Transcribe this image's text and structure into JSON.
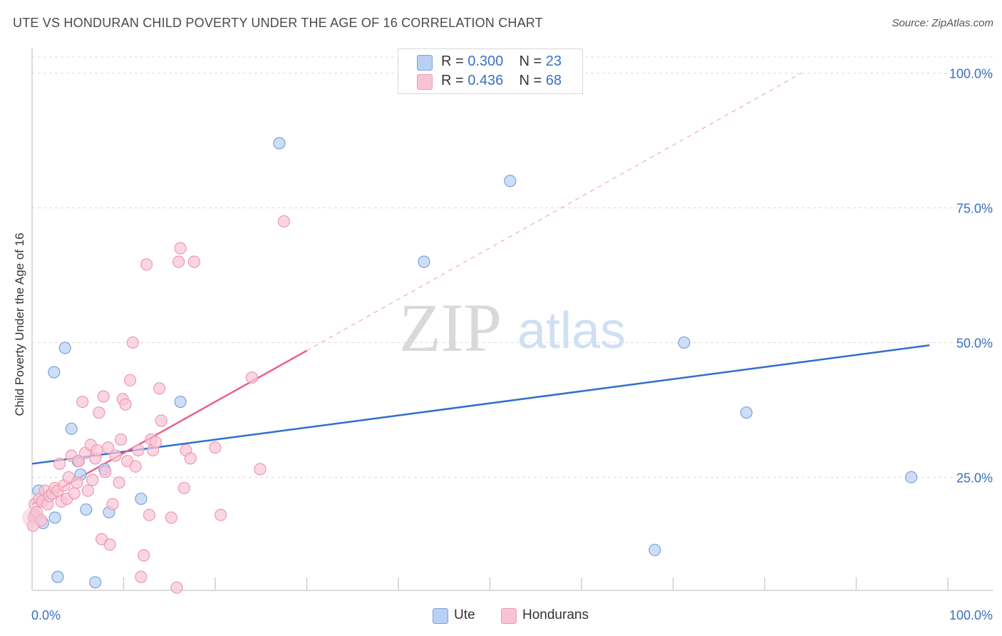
{
  "header": {
    "title": "UTE VS HONDURAN CHILD POVERTY UNDER THE AGE OF 16 CORRELATION CHART",
    "source": "Source: ZipAtlas.com"
  },
  "watermark": {
    "zip": "ZIP",
    "atlas": "atlas"
  },
  "legend": {
    "ute": {
      "r_label": "R =",
      "r_value": "0.300",
      "n_label": "N =",
      "n_value": "23"
    },
    "hondurans": {
      "r_label": "R =",
      "r_value": "0.436",
      "n_label": "N =",
      "n_value": "68"
    }
  },
  "bottom_legend": {
    "ute": "Ute",
    "hondurans": "Hondurans"
  },
  "colors": {
    "ute_fill": "#b8d0f2",
    "ute_stroke": "#7aa3dc",
    "ute_line": "#2f6fce",
    "hond_fill": "#f8c4d4",
    "hond_stroke": "#ee98b2",
    "hond_line": "#e8628c",
    "axis_text": "#3a6fc4",
    "grid": "#dcdcdc"
  },
  "chart_data": {
    "type": "scatter",
    "title": "UTE VS HONDURAN CHILD POVERTY UNDER THE AGE OF 16 CORRELATION CHART",
    "xlabel": "",
    "ylabel": "Child Poverty Under the Age of 16",
    "x_tick_labels": [
      "0.0%",
      "100.0%"
    ],
    "y_tick_labels": [
      "100.0%",
      "75.0%",
      "50.0%",
      "25.0%"
    ],
    "y_ticks": [
      100,
      75,
      50,
      25
    ],
    "xlim": [
      0,
      100
    ],
    "ylim": [
      4,
      103
    ],
    "grid": true,
    "series": [
      {
        "name": "Ute",
        "R": 0.3,
        "N": 23,
        "points": [
          [
            0.3,
            18.0
          ],
          [
            0.7,
            22.5
          ],
          [
            1.2,
            16.5
          ],
          [
            2.4,
            44.5
          ],
          [
            2.5,
            17.5
          ],
          [
            2.8,
            6.5
          ],
          [
            3.6,
            49.0
          ],
          [
            4.3,
            34.0
          ],
          [
            5.0,
            28.0
          ],
          [
            5.3,
            25.5
          ],
          [
            5.9,
            19.0
          ],
          [
            6.9,
            5.5
          ],
          [
            7.9,
            26.5
          ],
          [
            8.4,
            18.5
          ],
          [
            11.9,
            21.0
          ],
          [
            16.2,
            39.0
          ],
          [
            27.0,
            87.0
          ],
          [
            42.8,
            65.0
          ],
          [
            52.2,
            80.0
          ],
          [
            68.0,
            11.5
          ],
          [
            71.2,
            50.0
          ],
          [
            78.0,
            37.0
          ],
          [
            96.0,
            25.0
          ]
        ]
      },
      {
        "name": "Hondurans",
        "R": 0.436,
        "N": 68,
        "points": [
          [
            0.2,
            17.5
          ],
          [
            0.3,
            20.0
          ],
          [
            0.5,
            18.5
          ],
          [
            0.8,
            21.0
          ],
          [
            1.1,
            20.5
          ],
          [
            1.4,
            22.5
          ],
          [
            1.7,
            20.0
          ],
          [
            1.9,
            21.5
          ],
          [
            2.2,
            22.0
          ],
          [
            2.5,
            23.0
          ],
          [
            2.8,
            22.5
          ],
          [
            3.0,
            27.5
          ],
          [
            3.2,
            20.5
          ],
          [
            3.5,
            23.5
          ],
          [
            3.8,
            21.0
          ],
          [
            4.0,
            25.0
          ],
          [
            4.3,
            29.0
          ],
          [
            4.6,
            22.0
          ],
          [
            4.9,
            24.0
          ],
          [
            5.1,
            28.0
          ],
          [
            5.5,
            39.0
          ],
          [
            5.8,
            29.5
          ],
          [
            6.1,
            22.5
          ],
          [
            6.4,
            31.0
          ],
          [
            6.6,
            24.5
          ],
          [
            6.9,
            28.5
          ],
          [
            7.1,
            30.0
          ],
          [
            7.3,
            37.0
          ],
          [
            7.6,
            13.5
          ],
          [
            7.8,
            40.0
          ],
          [
            8.0,
            26.0
          ],
          [
            8.3,
            30.5
          ],
          [
            8.5,
            12.5
          ],
          [
            8.8,
            20.0
          ],
          [
            9.1,
            29.0
          ],
          [
            9.5,
            24.0
          ],
          [
            9.7,
            32.0
          ],
          [
            9.9,
            39.5
          ],
          [
            10.2,
            38.5
          ],
          [
            10.4,
            28.0
          ],
          [
            10.7,
            43.0
          ],
          [
            11.0,
            50.0
          ],
          [
            11.3,
            27.0
          ],
          [
            11.6,
            30.0
          ],
          [
            11.9,
            6.5
          ],
          [
            12.2,
            10.5
          ],
          [
            12.5,
            64.5
          ],
          [
            12.8,
            18.0
          ],
          [
            13.0,
            32.0
          ],
          [
            13.2,
            30.0
          ],
          [
            13.5,
            31.5
          ],
          [
            13.9,
            41.5
          ],
          [
            14.1,
            35.5
          ],
          [
            15.2,
            17.5
          ],
          [
            15.8,
            4.5
          ],
          [
            16.0,
            65.0
          ],
          [
            16.2,
            67.5
          ],
          [
            16.6,
            23.0
          ],
          [
            16.8,
            30.0
          ],
          [
            17.3,
            28.5
          ],
          [
            17.7,
            65.0
          ],
          [
            20.0,
            30.5
          ],
          [
            20.6,
            18.0
          ],
          [
            24.0,
            43.5
          ],
          [
            24.9,
            26.5
          ],
          [
            27.5,
            72.5
          ],
          [
            0.1,
            16.0
          ],
          [
            1.0,
            17.0
          ]
        ]
      }
    ],
    "trend_lines": [
      {
        "series": "Ute",
        "x": [
          0,
          98
        ],
        "y": [
          27.5,
          49.5
        ],
        "style": "solid"
      },
      {
        "series": "Hondurans",
        "x": [
          0,
          30
        ],
        "y": [
          20.0,
          48.5
        ],
        "style": "solid"
      },
      {
        "series": "Hondurans",
        "x": [
          30,
          84
        ],
        "y": [
          48.5,
          100.0
        ],
        "style": "dashed"
      }
    ]
  }
}
